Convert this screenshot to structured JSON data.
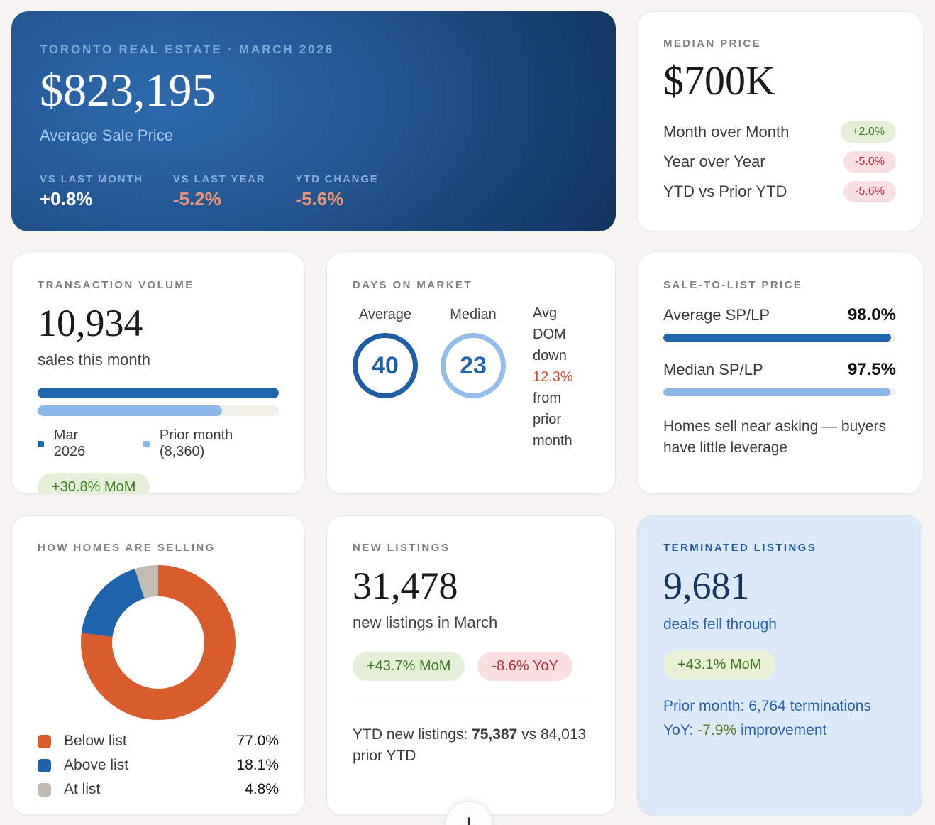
{
  "hero": {
    "title": "TORONTO REAL ESTATE · MARCH 2026",
    "value": "$823,195",
    "subtitle": "Average Sale Price",
    "stats": [
      {
        "label": "VS LAST MONTH",
        "value": "+0.8%",
        "tone": "positive"
      },
      {
        "label": "VS LAST YEAR",
        "value": "-5.2%",
        "tone": "negative"
      },
      {
        "label": "YTD CHANGE",
        "value": "-5.6%",
        "tone": "negative"
      }
    ]
  },
  "median_price": {
    "title": "MEDIAN PRICE",
    "value": "$700K",
    "rows": [
      {
        "label": "Month over Month",
        "badge": "+2.0%",
        "tone": "positive"
      },
      {
        "label": "Year over Year",
        "badge": "-5.0%",
        "tone": "negative"
      },
      {
        "label": "YTD vs Prior YTD",
        "badge": "-5.6%",
        "tone": "negative"
      }
    ]
  },
  "transaction_volume": {
    "title": "TRANSACTION VOLUME",
    "value": "10,934",
    "subtitle": "sales this month",
    "legend": [
      {
        "label": "Mar 2026"
      },
      {
        "label": "Prior month (8,360)"
      }
    ],
    "badge": "+30.8% MoM",
    "badge_tone": "positive"
  },
  "days_on_market": {
    "title": "DAYS ON MARKET",
    "average_label": "Average",
    "average_value": "40",
    "median_label": "Median",
    "median_value": "23",
    "note_pre": "Avg DOM down ",
    "note_highlight": "12.3%",
    "note_post": " from prior month"
  },
  "sale_to_list": {
    "title": "SALE-TO-LIST PRICE",
    "rows": [
      {
        "label": "Average SP/LP",
        "value": "98.0%"
      },
      {
        "label": "Median SP/LP",
        "value": "97.5%"
      }
    ],
    "note": "Homes sell near asking — buyers have little leverage"
  },
  "how_homes": {
    "title": "HOW HOMES ARE SELLING",
    "legend": [
      {
        "label": "Below list",
        "value": "77.0%"
      },
      {
        "label": "Above list",
        "value": "18.1%"
      },
      {
        "label": "At list",
        "value": "4.8%"
      }
    ]
  },
  "new_listings": {
    "title": "NEW LISTINGS",
    "value": "31,478",
    "subtitle": "new listings in March",
    "badges": [
      {
        "text": "+43.7% MoM",
        "tone": "positive"
      },
      {
        "text": "-8.6% YoY",
        "tone": "negative"
      }
    ],
    "ytd_pre": "YTD new listings: ",
    "ytd_bold": "75,387",
    "ytd_post": " vs 84,013 prior YTD"
  },
  "terminated": {
    "title": "TERMINATED LISTINGS",
    "value": "9,681",
    "subtitle": "deals fell through",
    "badge": "+43.1% MoM",
    "badge_tone": "positive",
    "prior_line": "Prior month: 6,764 terminations",
    "yoy_pre": "YoY: ",
    "yoy_highlight": "-7.9%",
    "yoy_post": " improvement"
  },
  "scroll_button": {
    "icon": "arrow-down"
  },
  "colors": {
    "dark_blue": "#1f66ae",
    "light_blue": "#8ab8ea",
    "orange": "#d85c2c",
    "donut_blue": "#1e63ac",
    "gray": "#c0bcb2",
    "positive_green": "#3f7d22",
    "negative_red": "#ba2f3c",
    "highlight_orange": "#d14f2e"
  },
  "chart_data": [
    {
      "type": "bar",
      "title": "TRANSACTION VOLUME",
      "orientation": "horizontal",
      "categories": [
        "Mar 2026",
        "Prior month"
      ],
      "values": [
        10934,
        8360
      ],
      "colors": [
        "#1f66ae",
        "#8ab8ea"
      ],
      "xlim": [
        0,
        10934
      ],
      "annotation": "+30.8% MoM"
    },
    {
      "type": "bar",
      "title": "SALE-TO-LIST PRICE",
      "orientation": "horizontal",
      "categories": [
        "Average SP/LP",
        "Median SP/LP"
      ],
      "values": [
        98.0,
        97.5
      ],
      "colors": [
        "#1f66ae",
        "#8ab8ea"
      ],
      "xlim": [
        0,
        100
      ]
    },
    {
      "type": "pie",
      "title": "HOW HOMES ARE SELLING",
      "donut": true,
      "categories": [
        "Below list",
        "Above list",
        "At list"
      ],
      "values": [
        77.0,
        18.1,
        4.8
      ],
      "colors": [
        "#d85c2c",
        "#1e63ac",
        "#c0bcb2"
      ],
      "start_angle_deg": 0,
      "direction": "clockwise"
    }
  ]
}
